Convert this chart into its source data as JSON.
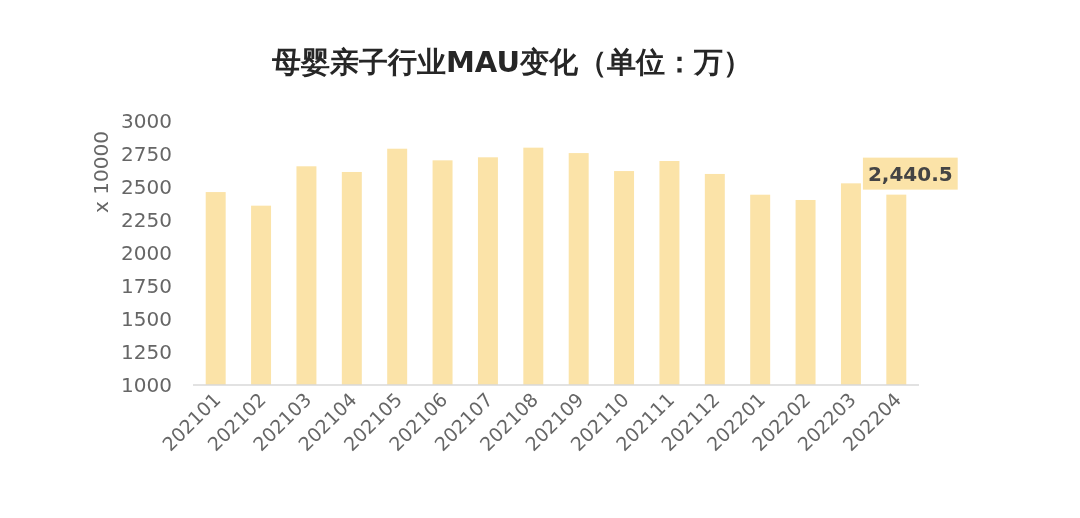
{
  "chart_data": {
    "type": "bar",
    "title": "母婴亲子行业MAU变化（单位：万）",
    "ylabel": "x 10000",
    "categories": [
      "202101",
      "202102",
      "202103",
      "202104",
      "202105",
      "202106",
      "202107",
      "202108",
      "202109",
      "202110",
      "202111",
      "202112",
      "202201",
      "202202",
      "202203",
      "202204"
    ],
    "values": [
      2460,
      2357,
      2655,
      2612,
      2788,
      2700,
      2723,
      2796,
      2755,
      2619,
      2695,
      2597,
      2440,
      2400,
      2526,
      2440.5
    ],
    "value_labels": [
      null,
      null,
      null,
      null,
      null,
      null,
      null,
      null,
      null,
      null,
      null,
      null,
      null,
      null,
      null,
      "2,440.5"
    ],
    "color": "#fbe3a8",
    "ylim": [
      1000,
      3000
    ],
    "yticks": [
      1000,
      1250,
      1500,
      1750,
      2000,
      2250,
      2500,
      2750,
      3000
    ]
  }
}
